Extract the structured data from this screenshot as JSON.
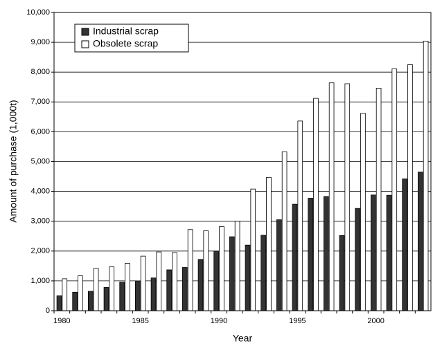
{
  "chart_data": {
    "type": "bar",
    "x_label": "Year",
    "y_label": "Amount of purchase (1,000t)",
    "categories": [
      "1980",
      null,
      null,
      null,
      null,
      "1985",
      null,
      null,
      null,
      null,
      "1990",
      null,
      null,
      null,
      null,
      "1995",
      null,
      null,
      null,
      null,
      "2000",
      null,
      null,
      null
    ],
    "series": [
      {
        "name": "Industrial scrap",
        "color": "#333333",
        "values": [
          500,
          620,
          650,
          780,
          960,
          1000,
          1100,
          1370,
          1450,
          1720,
          2000,
          2480,
          2200,
          2530,
          3050,
          3570,
          3770,
          3830,
          2520,
          3430,
          3880,
          3870,
          4420,
          4650
        ]
      },
      {
        "name": "Obsolete scrap",
        "color": "#ffffff",
        "values": [
          1070,
          1170,
          1420,
          1470,
          1590,
          1830,
          1970,
          1950,
          2720,
          2680,
          2820,
          3000,
          4080,
          4470,
          5330,
          6360,
          7120,
          7640,
          7610,
          6620,
          7460,
          8110,
          8250,
          9040
        ]
      }
    ],
    "ylim": [
      0,
      10000
    ],
    "yticks": [
      0,
      {
        "value": 1000,
        "label": "1,000"
      },
      {
        "value": 2000,
        "label": "2,000"
      },
      {
        "value": 3000,
        "label": "3,000"
      },
      {
        "value": 4000,
        "label": "4,000"
      },
      {
        "value": 5000,
        "label": "5,000"
      },
      {
        "value": 6000,
        "label": "6,000"
      },
      {
        "value": 7000,
        "label": "7,000"
      },
      {
        "value": 8000,
        "label": "8,000"
      },
      {
        "value": 9000,
        "label": "9,000"
      },
      {
        "value": 10000,
        "label": "10,000"
      }
    ],
    "grid": true,
    "legend": "upper left"
  }
}
